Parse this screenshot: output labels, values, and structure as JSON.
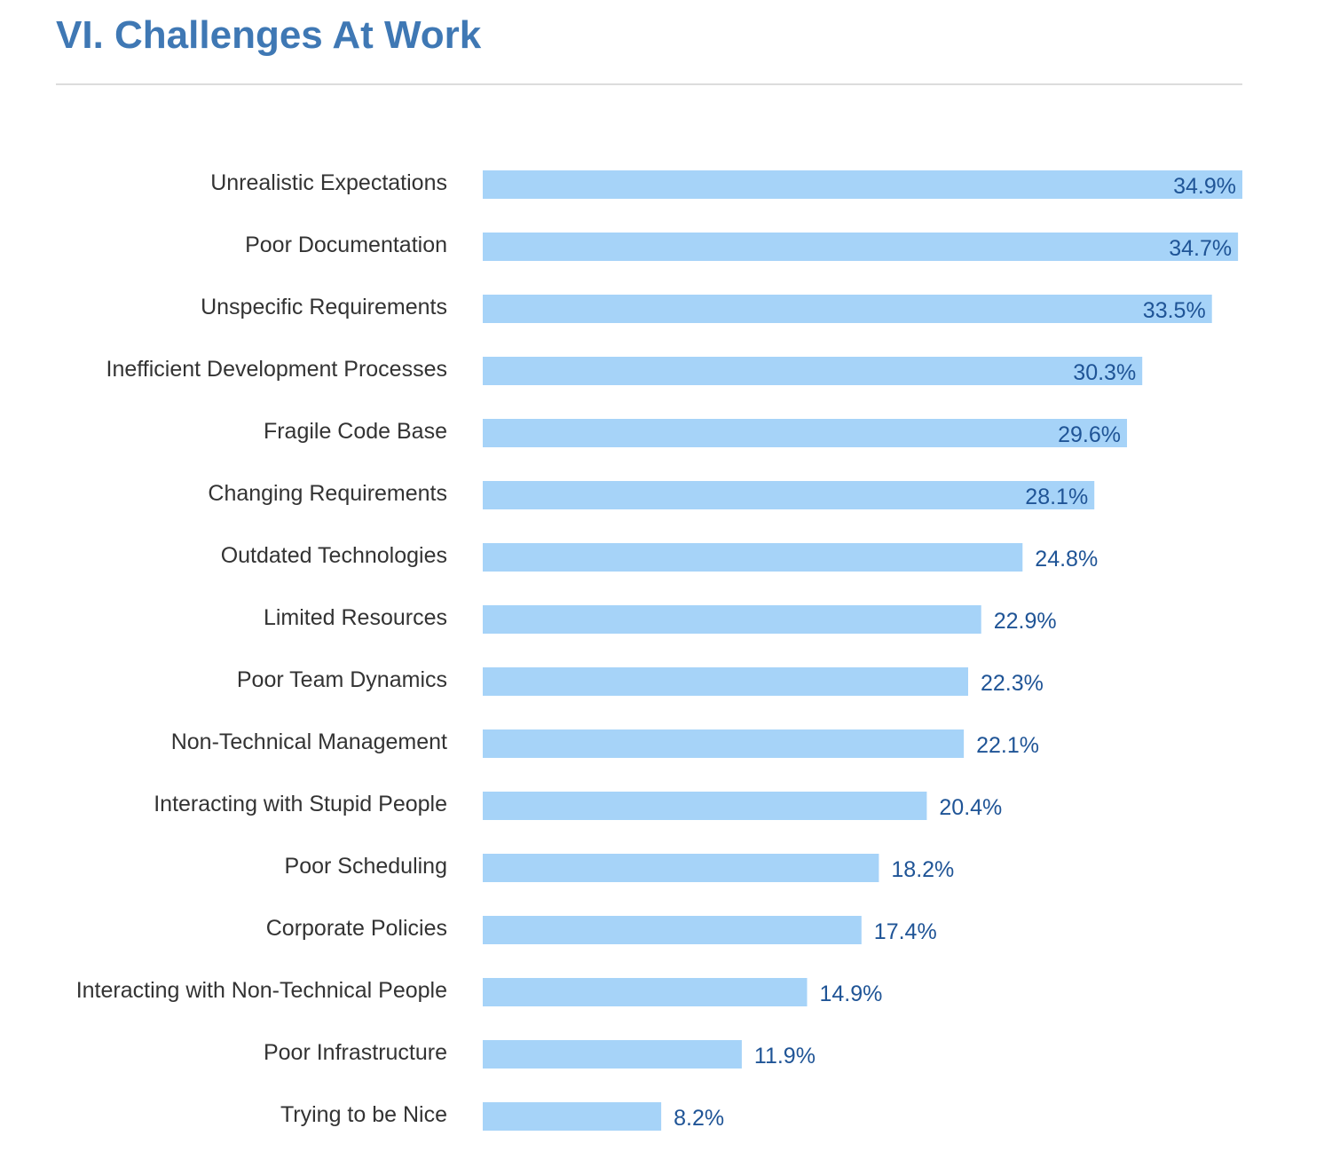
{
  "page": {
    "title": "VI. Challenges At Work"
  },
  "chart_data": {
    "type": "bar",
    "orientation": "horizontal",
    "title": "",
    "xlabel": "",
    "ylabel": "",
    "xlim": [
      0,
      34.9
    ],
    "grid": false,
    "legend": "none",
    "bar_color": "#a6d3f8",
    "value_label_color": "#1f5496",
    "categories": [
      "Unrealistic Expectations",
      "Poor Documentation",
      "Unspecific Requirements",
      "Inefficient Development Processes",
      "Fragile Code Base",
      "Changing Requirements",
      "Outdated Technologies",
      "Limited Resources",
      "Poor Team Dynamics",
      "Non-Technical Management",
      "Interacting with Stupid People",
      "Poor Scheduling",
      "Corporate Policies",
      "Interacting with Non-Technical People",
      "Poor Infrastructure",
      "Trying to be Nice"
    ],
    "values": [
      34.9,
      34.7,
      33.5,
      30.3,
      29.6,
      28.1,
      24.8,
      22.9,
      22.3,
      22.1,
      20.4,
      18.2,
      17.4,
      14.9,
      11.9,
      8.2
    ],
    "value_labels": [
      "34.9%",
      "34.7%",
      "33.5%",
      "30.3%",
      "29.6%",
      "28.1%",
      "24.8%",
      "22.9%",
      "22.3%",
      "22.1%",
      "20.4%",
      "18.2%",
      "17.4%",
      "14.9%",
      "11.9%",
      "8.2%"
    ]
  }
}
